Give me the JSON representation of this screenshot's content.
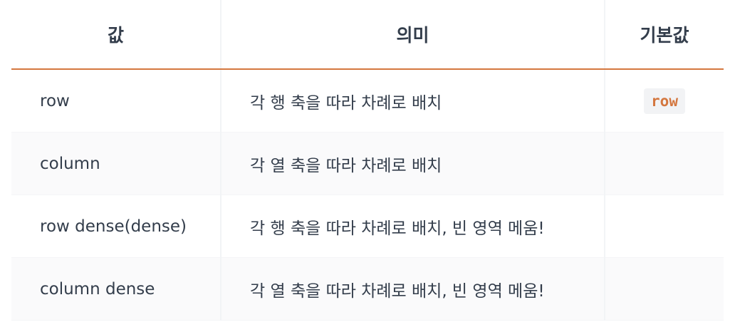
{
  "table": {
    "headers": [
      "값",
      "의미",
      "기본값"
    ],
    "rows": [
      {
        "value": "row",
        "meaning": "각 행 축을 따라 차례로 배치",
        "default": "row"
      },
      {
        "value": "column",
        "meaning": "각 열 축을 따라 차례로 배치",
        "default": ""
      },
      {
        "value": "row dense(dense)",
        "meaning": "각 행 축을 따라 차례로 배치, 빈 영역 메움!",
        "default": ""
      },
      {
        "value": "column dense",
        "meaning": "각 열 축을 따라 차례로 배치, 빈 영역 메움!",
        "default": ""
      }
    ]
  },
  "colors": {
    "header_rule": "#d4773f",
    "code_text": "#d4773f",
    "code_bg": "#f2f3f5",
    "text": "#333d4b"
  }
}
